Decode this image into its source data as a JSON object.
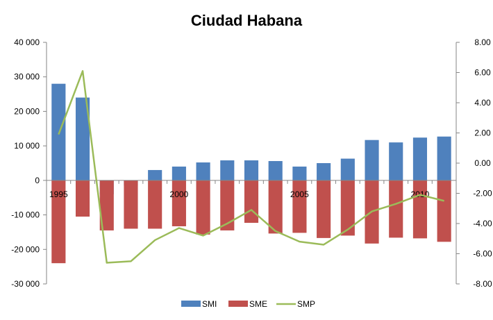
{
  "chart_data": {
    "type": "bar",
    "title": "Ciudad Habana",
    "x": [
      1995,
      1996,
      1997,
      1998,
      1999,
      2000,
      2001,
      2002,
      2003,
      2004,
      2005,
      2006,
      2007,
      2008,
      2009,
      2010,
      2011
    ],
    "x_tick_labels": [
      "1995",
      "2000",
      "2005",
      "2010"
    ],
    "x_tick_values": [
      1995,
      2000,
      2005,
      2010
    ],
    "y_left": {
      "min": -30000,
      "max": 40000,
      "step": 10000,
      "tick_labels": [
        "-30 000",
        "-20 000",
        "-10 000",
        "0",
        "10 000",
        "20 000",
        "30 000",
        "40 000"
      ]
    },
    "y_right": {
      "min": -8,
      "max": 8,
      "step": 2,
      "tick_labels": [
        "-8.00",
        "-6.00",
        "-4.00",
        "-2.00",
        "0.00",
        "2.00",
        "4.00",
        "6.00",
        "8.00"
      ]
    },
    "series": [
      {
        "name": "SMI",
        "type": "bar",
        "axis": "left",
        "color": "#4F81BD",
        "values": [
          28000,
          24000,
          -4000,
          -1500,
          3000,
          4000,
          5200,
          5800,
          5800,
          5600,
          4000,
          5000,
          6300,
          11700,
          11000,
          12400,
          12700
        ]
      },
      {
        "name": "SME",
        "type": "bar",
        "axis": "left",
        "color": "#C0504D",
        "values": [
          -24000,
          -10500,
          -14500,
          -14000,
          -14000,
          -13300,
          -15700,
          -14500,
          -12300,
          -15400,
          -15200,
          -16700,
          -16000,
          -18300,
          -16600,
          -16800,
          -17800
        ]
      },
      {
        "name": "SMP",
        "type": "line",
        "axis": "right",
        "color": "#9BBB59",
        "values": [
          1.9,
          6.1,
          -6.6,
          -6.5,
          -5.1,
          -4.3,
          -4.8,
          -4.0,
          -3.1,
          -4.5,
          -5.2,
          -5.4,
          -4.4,
          -3.2,
          -2.7,
          -2.1,
          -2.5
        ]
      }
    ],
    "legend_position": "bottom",
    "grid": false
  }
}
